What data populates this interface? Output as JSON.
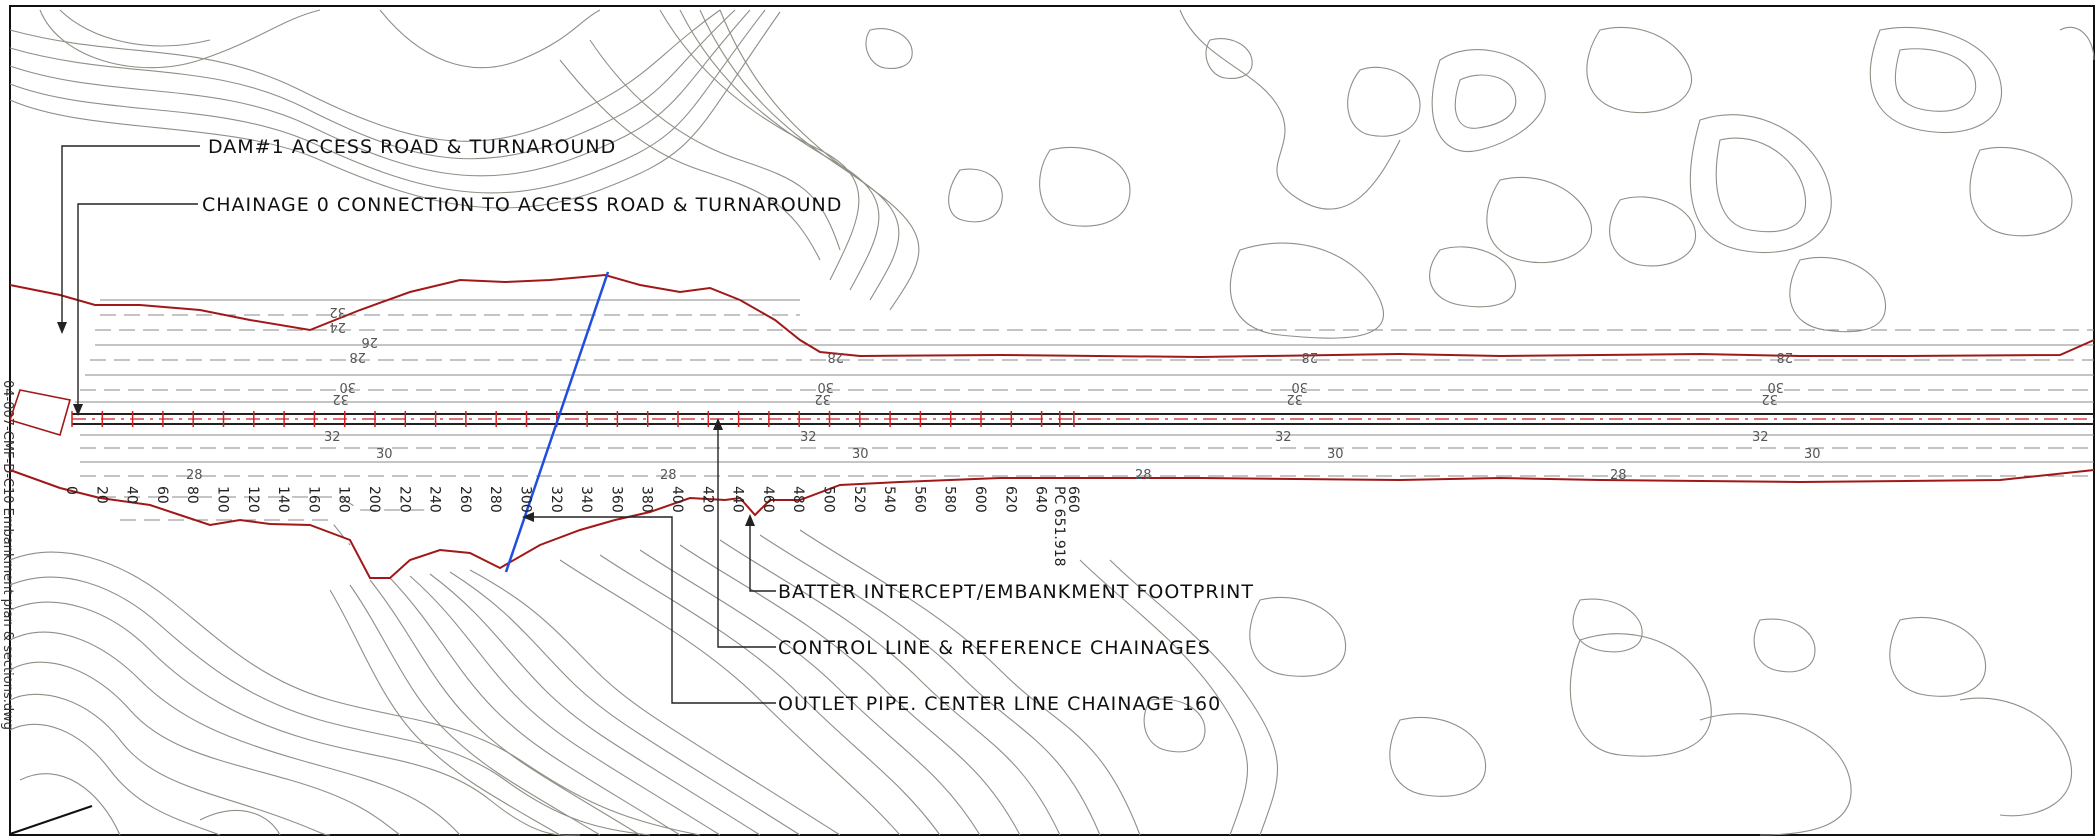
{
  "sheet": {
    "side_label": "04-007-CMF-D-C10 Embankment plan & sections.dwg"
  },
  "callouts": {
    "dam_access": "DAM#1 ACCESS ROAD & TURNAROUND",
    "chainage_connection": "CHAINAGE 0 CONNECTION TO ACCESS ROAD & TURNAROUND",
    "batter_intercept": "BATTER INTERCEPT/EMBANKMENT FOOTPRINT",
    "control_line": "CONTROL LINE & REFERENCE CHAINAGES",
    "outlet_pipe": "OUTLET PIPE.  CENTER LINE CHAINAGE 160"
  },
  "chainages": [
    "0",
    "20",
    "40",
    "60",
    "80",
    "100",
    "120",
    "140",
    "160",
    "180",
    "200",
    "220",
    "240",
    "260",
    "280",
    "300",
    "320",
    "340",
    "360",
    "380",
    "400",
    "420",
    "440",
    "460",
    "480",
    "500",
    "520",
    "540",
    "560",
    "580",
    "600",
    "620",
    "640",
    "PC 651.918",
    "660"
  ],
  "upstream_labels": {
    "row_24": "24",
    "row_26": "26",
    "row_28": "28",
    "row_30": "30",
    "row_32": "32"
  },
  "downstream_labels": {
    "row_32": "32",
    "row_30": "30",
    "row_28": "28"
  },
  "colors": {
    "contour": "#8f8f86",
    "footprint": "#a01818",
    "control_line": "#222222",
    "tick": "#d21f1f",
    "outlet_pipe": "#1f4fe0",
    "dashed_contour": "#8a8a8a"
  }
}
